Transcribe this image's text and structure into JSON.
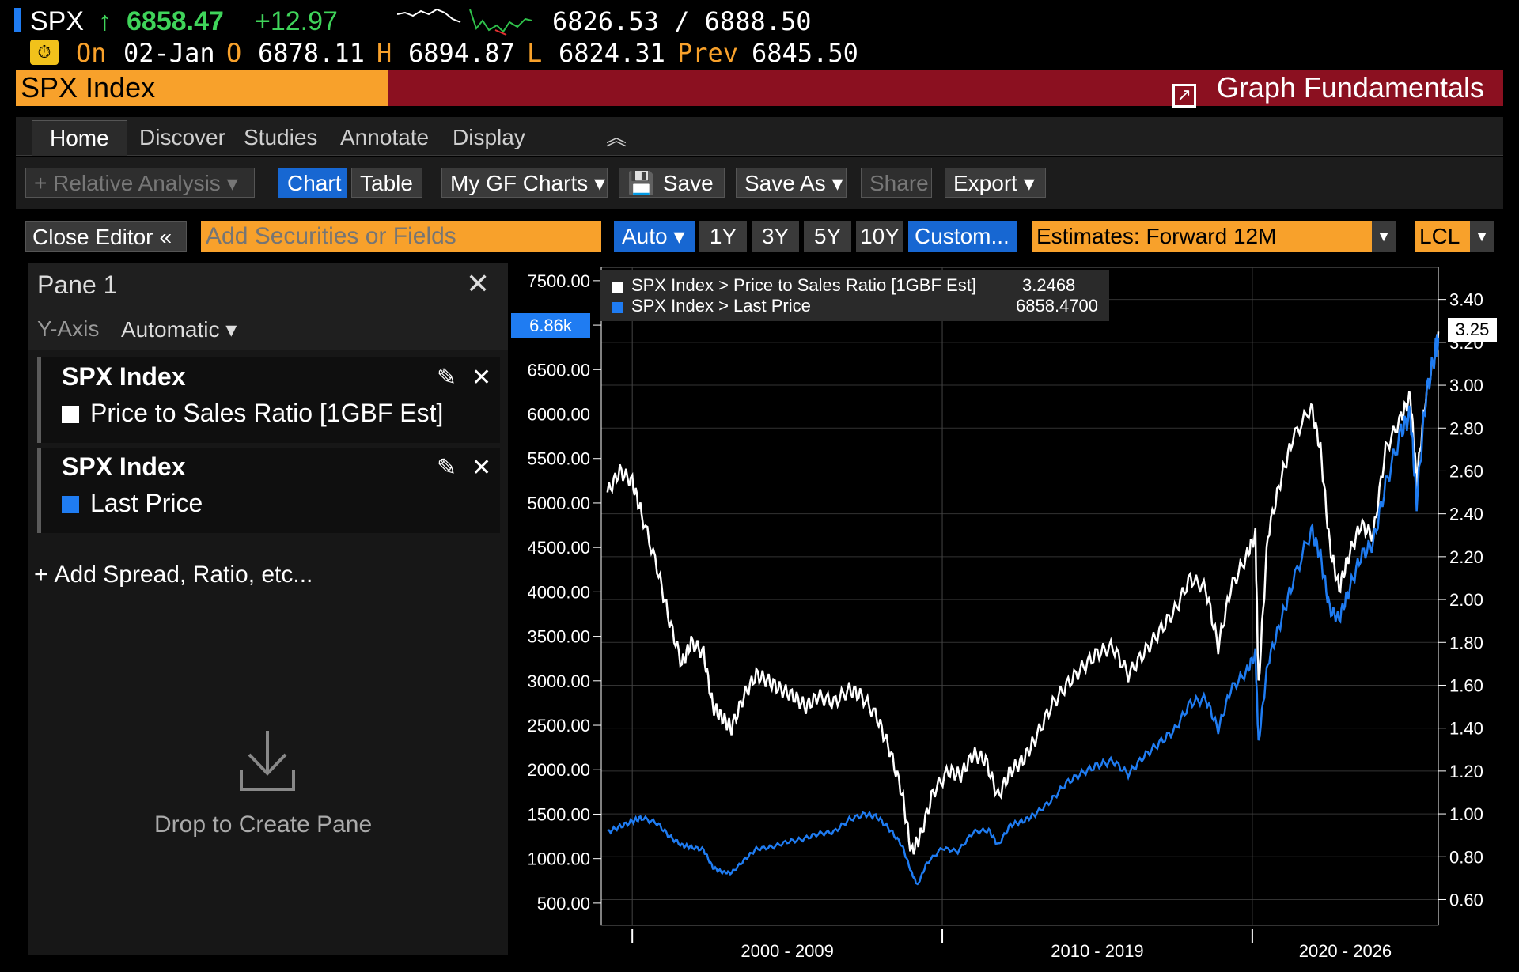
{
  "ticker": {
    "symbol": "SPX",
    "arrow": "↑",
    "last": "6858.47",
    "change": "+12.97",
    "range": "6826.53  /  6888.50",
    "on_label": "On",
    "date": "02-Jan",
    "open_label": "O",
    "open": "6878.11",
    "high_label": "H",
    "high": "6894.87",
    "low_label": "L",
    "low": "6824.31",
    "prev_label": "Prev",
    "prev": "6845.50",
    "alert_icon": "clock-alert-icon"
  },
  "titlebar": {
    "security": "SPX Index",
    "function": "Graph Fundamentals",
    "icon": "external-link-icon"
  },
  "menu": {
    "tabs": [
      "Home",
      "Discover",
      "Studies",
      "Annotate",
      "Display"
    ],
    "collapse_icon": "double-chevron-up-icon"
  },
  "toolbar": {
    "relative_analysis": "+ Relative Analysis ▾",
    "chart": "Chart",
    "table": "Table",
    "my_gf_charts": "My GF Charts ▾",
    "save": "Save",
    "save_as": "Save As ▾",
    "share": "Share",
    "export": "Export ▾"
  },
  "controls": {
    "close_editor": "Close Editor",
    "add_placeholder": "Add Securities or Fields",
    "auto": "Auto ▾",
    "periods": [
      "1Y",
      "3Y",
      "5Y",
      "10Y"
    ],
    "custom": "Custom...",
    "estimates": "Estimates: Forward 12M",
    "currency": "LCL"
  },
  "pane": {
    "title": "Pane 1",
    "yaxis_label": "Y-Axis",
    "yaxis_value": "Automatic ▾",
    "series": [
      {
        "security": "SPX Index",
        "field": "Price to Sales Ratio [1GBF Est]",
        "color": "#ffffff"
      },
      {
        "security": "SPX Index",
        "field": "Last Price",
        "color": "#1f7cf2"
      }
    ],
    "add_spread": "Add Spread, Ratio, etc...",
    "drop_label": "Drop to Create Pane"
  },
  "chart_data": {
    "type": "line",
    "legend": [
      {
        "name": "SPX Index > Price to Sales Ratio [1GBF Est]",
        "value": "3.2468",
        "color": "#ffffff"
      },
      {
        "name": "SPX Index > Last Price",
        "value": "6858.4700",
        "color": "#1f7cf2"
      }
    ],
    "left_axis": {
      "ticks": [
        "7500.00",
        "7000.00",
        "6500.00",
        "6000.00",
        "5500.00",
        "5000.00",
        "4500.00",
        "4000.00",
        "3500.00",
        "3000.00",
        "2500.00",
        "2000.00",
        "1500.00",
        "1000.00",
        "500.00"
      ],
      "range": [
        250,
        7650
      ]
    },
    "right_axis": {
      "ticks": [
        "3.40",
        "3.20",
        "3.00",
        "2.80",
        "2.60",
        "2.40",
        "2.20",
        "2.00",
        "1.80",
        "1.60",
        "1.40",
        "1.20",
        "1.00",
        "0.80",
        "0.60"
      ],
      "range": [
        0.48,
        3.55
      ]
    },
    "x_labels": [
      "2000 - 2009",
      "2010 - 2019",
      "2020 - 2026"
    ],
    "x_range": [
      1999.0,
      2026.0
    ],
    "left_current": "6.86k",
    "right_current": "3.25",
    "series": [
      {
        "name": "SPX Index > Price to Sales Ratio [1GBF Est]",
        "axis": "right",
        "color": "#ffffff",
        "points": [
          [
            1999.2,
            2.5
          ],
          [
            1999.6,
            2.6
          ],
          [
            2000.0,
            2.55
          ],
          [
            2000.3,
            2.4
          ],
          [
            2000.8,
            2.15
          ],
          [
            2001.2,
            1.9
          ],
          [
            2001.6,
            1.7
          ],
          [
            2001.9,
            1.8
          ],
          [
            2002.3,
            1.75
          ],
          [
            2002.6,
            1.5
          ],
          [
            2002.9,
            1.45
          ],
          [
            2003.2,
            1.4
          ],
          [
            2003.6,
            1.55
          ],
          [
            2004.0,
            1.65
          ],
          [
            2004.4,
            1.62
          ],
          [
            2004.8,
            1.58
          ],
          [
            2005.2,
            1.55
          ],
          [
            2005.6,
            1.5
          ],
          [
            2006.0,
            1.55
          ],
          [
            2006.5,
            1.52
          ],
          [
            2007.0,
            1.58
          ],
          [
            2007.4,
            1.55
          ],
          [
            2007.9,
            1.45
          ],
          [
            2008.3,
            1.3
          ],
          [
            2008.7,
            1.1
          ],
          [
            2009.0,
            0.82
          ],
          [
            2009.3,
            0.9
          ],
          [
            2009.7,
            1.1
          ],
          [
            2010.2,
            1.2
          ],
          [
            2010.6,
            1.18
          ],
          [
            2011.0,
            1.28
          ],
          [
            2011.4,
            1.25
          ],
          [
            2011.8,
            1.08
          ],
          [
            2012.2,
            1.2
          ],
          [
            2012.6,
            1.25
          ],
          [
            2013.0,
            1.35
          ],
          [
            2013.5,
            1.5
          ],
          [
            2014.0,
            1.6
          ],
          [
            2014.5,
            1.68
          ],
          [
            2015.0,
            1.75
          ],
          [
            2015.5,
            1.78
          ],
          [
            2016.0,
            1.65
          ],
          [
            2016.5,
            1.75
          ],
          [
            2017.0,
            1.85
          ],
          [
            2017.5,
            1.95
          ],
          [
            2018.0,
            2.1
          ],
          [
            2018.5,
            2.05
          ],
          [
            2018.9,
            1.78
          ],
          [
            2019.3,
            2.05
          ],
          [
            2019.8,
            2.2
          ],
          [
            2020.1,
            2.3
          ],
          [
            2020.2,
            1.6
          ],
          [
            2020.5,
            2.3
          ],
          [
            2020.9,
            2.55
          ],
          [
            2021.3,
            2.75
          ],
          [
            2021.9,
            2.9
          ],
          [
            2022.2,
            2.7
          ],
          [
            2022.5,
            2.25
          ],
          [
            2022.8,
            2.05
          ],
          [
            2023.1,
            2.2
          ],
          [
            2023.5,
            2.35
          ],
          [
            2023.9,
            2.3
          ],
          [
            2024.3,
            2.7
          ],
          [
            2024.8,
            2.85
          ],
          [
            2025.1,
            2.95
          ],
          [
            2025.3,
            2.55
          ],
          [
            2025.6,
            2.95
          ],
          [
            2025.9,
            3.15
          ],
          [
            2026.0,
            3.25
          ]
        ]
      },
      {
        "name": "SPX Index > Last Price",
        "axis": "left",
        "color": "#1f7cf2",
        "points": [
          [
            1999.2,
            1300
          ],
          [
            1999.6,
            1360
          ],
          [
            2000.0,
            1420
          ],
          [
            2000.3,
            1460
          ],
          [
            2000.8,
            1400
          ],
          [
            2001.2,
            1250
          ],
          [
            2001.6,
            1150
          ],
          [
            2001.9,
            1130
          ],
          [
            2002.3,
            1100
          ],
          [
            2002.6,
            900
          ],
          [
            2002.9,
            850
          ],
          [
            2003.2,
            840
          ],
          [
            2003.6,
            980
          ],
          [
            2004.0,
            1110
          ],
          [
            2004.5,
            1130
          ],
          [
            2005.0,
            1190
          ],
          [
            2005.5,
            1220
          ],
          [
            2006.0,
            1280
          ],
          [
            2006.5,
            1300
          ],
          [
            2007.0,
            1440
          ],
          [
            2007.5,
            1500
          ],
          [
            2007.9,
            1470
          ],
          [
            2008.3,
            1330
          ],
          [
            2008.7,
            1150
          ],
          [
            2009.0,
            850
          ],
          [
            2009.2,
            700
          ],
          [
            2009.5,
            950
          ],
          [
            2010.0,
            1120
          ],
          [
            2010.5,
            1080
          ],
          [
            2011.0,
            1300
          ],
          [
            2011.5,
            1320
          ],
          [
            2011.8,
            1150
          ],
          [
            2012.2,
            1380
          ],
          [
            2012.6,
            1420
          ],
          [
            2013.0,
            1500
          ],
          [
            2013.5,
            1650
          ],
          [
            2014.0,
            1850
          ],
          [
            2014.5,
            1960
          ],
          [
            2015.0,
            2050
          ],
          [
            2015.5,
            2100
          ],
          [
            2016.0,
            1950
          ],
          [
            2016.5,
            2150
          ],
          [
            2017.0,
            2300
          ],
          [
            2017.5,
            2450
          ],
          [
            2018.0,
            2750
          ],
          [
            2018.5,
            2800
          ],
          [
            2018.9,
            2450
          ],
          [
            2019.3,
            2900
          ],
          [
            2019.8,
            3100
          ],
          [
            2020.1,
            3300
          ],
          [
            2020.2,
            2300
          ],
          [
            2020.5,
            3200
          ],
          [
            2020.9,
            3650
          ],
          [
            2021.3,
            4100
          ],
          [
            2021.9,
            4700
          ],
          [
            2022.2,
            4400
          ],
          [
            2022.5,
            3800
          ],
          [
            2022.8,
            3700
          ],
          [
            2023.1,
            4000
          ],
          [
            2023.5,
            4400
          ],
          [
            2023.9,
            4550
          ],
          [
            2024.3,
            5200
          ],
          [
            2024.8,
            5800
          ],
          [
            2025.1,
            6000
          ],
          [
            2025.3,
            5000
          ],
          [
            2025.6,
            6200
          ],
          [
            2025.9,
            6700
          ],
          [
            2026.0,
            6858
          ]
        ]
      }
    ]
  }
}
